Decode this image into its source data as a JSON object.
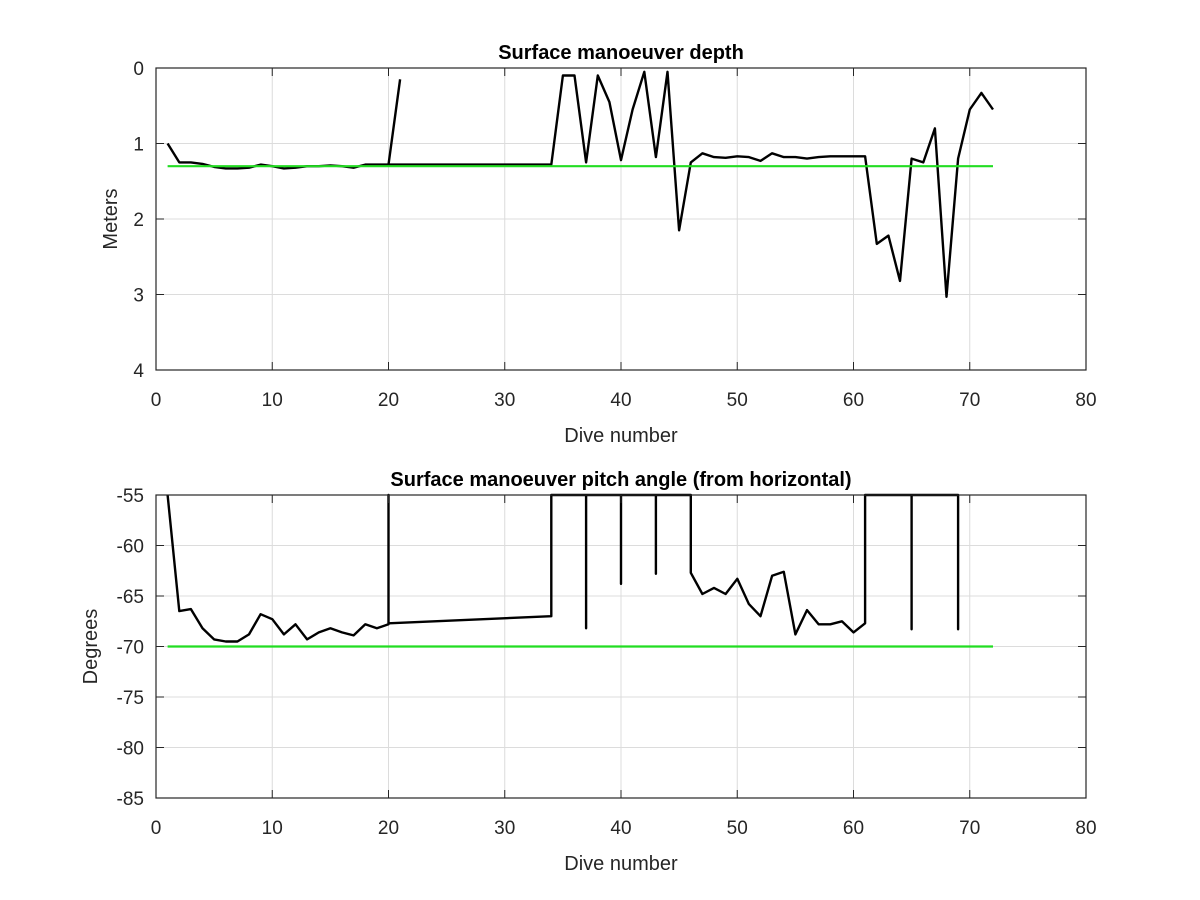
{
  "chart_data": [
    {
      "type": "line",
      "title": "Surface manoeuver depth",
      "xlabel": "Dive number",
      "ylabel": "Meters",
      "xlim": [
        0,
        80
      ],
      "ylim": [
        0,
        4
      ],
      "y_reversed": true,
      "xticks": [
        0,
        10,
        20,
        30,
        40,
        50,
        60,
        70,
        80
      ],
      "yticks": [
        0,
        1,
        2,
        3,
        4
      ],
      "grid": true,
      "series": [
        {
          "color": "#000000",
          "x": [
            1,
            2,
            3,
            4,
            5,
            6,
            7,
            8,
            9,
            10,
            11,
            12,
            13,
            14,
            15,
            16,
            17,
            18,
            19,
            20,
            21,
            null,
            20,
            34,
            35,
            36,
            37,
            38,
            39,
            40,
            41,
            42,
            43,
            44,
            45,
            46,
            47,
            48,
            49,
            50,
            51,
            52,
            53,
            54,
            55,
            56,
            57,
            58,
            59,
            60,
            61,
            62,
            63,
            64,
            65,
            66,
            67,
            68,
            69,
            70,
            71,
            72
          ],
          "y": [
            1.0,
            1.25,
            1.25,
            1.27,
            1.31,
            1.33,
            1.33,
            1.32,
            1.28,
            1.3,
            1.33,
            1.32,
            1.3,
            1.3,
            1.29,
            1.3,
            1.32,
            1.28,
            1.28,
            1.28,
            0.15,
            null,
            1.28,
            1.28,
            0.1,
            0.1,
            1.25,
            0.1,
            0.45,
            1.22,
            0.55,
            0.05,
            1.18,
            0.05,
            2.15,
            1.25,
            1.13,
            1.18,
            1.19,
            1.17,
            1.18,
            1.23,
            1.13,
            1.18,
            1.18,
            1.2,
            1.18,
            1.17,
            1.17,
            1.17,
            1.17,
            2.33,
            2.22,
            2.82,
            1.2,
            1.25,
            0.8,
            3.03,
            1.2,
            0.55,
            0.33,
            0.55
          ]
        },
        {
          "color": "#22dd22",
          "x": [
            1,
            72
          ],
          "y": [
            1.3,
            1.3
          ]
        }
      ]
    },
    {
      "type": "line",
      "title": "Surface manoeuver pitch angle (from horizontal)",
      "xlabel": "Dive number",
      "ylabel": "Degrees",
      "xlim": [
        0,
        80
      ],
      "ylim": [
        -85,
        -55
      ],
      "y_reversed": false,
      "xticks": [
        0,
        10,
        20,
        30,
        40,
        50,
        60,
        70,
        80
      ],
      "yticks": [
        -55,
        -60,
        -65,
        -70,
        -75,
        -80,
        -85
      ],
      "grid": true,
      "series": [
        {
          "color": "#000000",
          "x": [
            1,
            2,
            3,
            4,
            5,
            6,
            7,
            8,
            9,
            10,
            11,
            12,
            13,
            14,
            15,
            16,
            17,
            18,
            19,
            20,
            20,
            20,
            34,
            34,
            37,
            37,
            37,
            40,
            40,
            40,
            43,
            43,
            43,
            46,
            46,
            47,
            48,
            49,
            50,
            51,
            52,
            53,
            54,
            55,
            56,
            57,
            58,
            59,
            60,
            61,
            61,
            65,
            65,
            65,
            69,
            69,
            69
          ],
          "y": [
            -55,
            -66.5,
            -66.3,
            -68.2,
            -69.3,
            -69.5,
            -69.5,
            -68.8,
            -66.8,
            -67.3,
            -68.8,
            -67.8,
            -69.3,
            -68.6,
            -68.2,
            -68.6,
            -68.9,
            -67.8,
            -68.2,
            -67.8,
            -55,
            -67.7,
            -67.0,
            -55,
            -55,
            -68.2,
            -55,
            -55,
            -63.8,
            -55,
            -55,
            -62.8,
            -55,
            -55,
            -62.7,
            -64.8,
            -64.2,
            -64.8,
            -63.3,
            -65.8,
            -67.0,
            -63.0,
            -62.6,
            -68.8,
            -66.4,
            -67.8,
            -67.8,
            -67.5,
            -68.6,
            -67.7,
            -55,
            -55,
            -68.3,
            -55,
            -55,
            -68.3,
            -55
          ]
        },
        {
          "color": "#22dd22",
          "x": [
            1,
            72
          ],
          "y": [
            -70,
            -70
          ]
        }
      ]
    }
  ]
}
